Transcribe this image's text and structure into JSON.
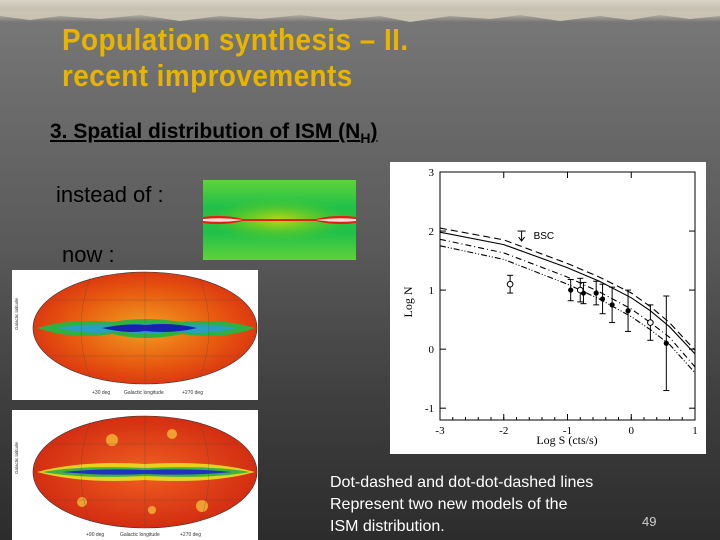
{
  "slide": {
    "title_line1": "Population synthesis – II.",
    "title_line2": "recent improvements",
    "subtitle_main": "3. Spatial distribution of ISM (N",
    "subtitle_sub": "H",
    "subtitle_end": ") ",
    "instead_label": "instead of :",
    "now_label": "now :",
    "note_line1": "Dot-dashed and dot-dot-dashed lines",
    "note_line2": "Represent two new models of the",
    "note_line3": "ISM distribution.",
    "page_number": "49"
  },
  "maps": {
    "top_left_label": "+30 deg",
    "top_mid_label": "Galactic longitude",
    "top_right_label": "+270 deg",
    "top_axis_label": "Galactic latitude",
    "bottom_left_label": "+90 deg",
    "bottom_mid_label": "Galactic longitude",
    "bottom_right_label": "+270 deg",
    "bottom_axis_label": "Galactic latitude"
  },
  "chart_data": {
    "type": "line",
    "xlabel": "Log S (cts/s)",
    "ylabel": "Log N",
    "xlim": [
      -3,
      1
    ],
    "ylim": [
      -1.2,
      3
    ],
    "xticks": [
      "-3",
      "-2",
      "-1",
      "0",
      "1"
    ],
    "yticks": [
      "3",
      "2",
      "1",
      "0",
      "-1"
    ],
    "annotation": "BSC",
    "series": [
      {
        "style": "dashed",
        "x": [
          -3,
          -2,
          -1,
          -0.5,
          0,
          0.3,
          0.6,
          1
        ],
        "y": [
          2.05,
          1.85,
          1.45,
          1.22,
          0.95,
          0.72,
          0.45,
          -0.02
        ]
      },
      {
        "style": "solid",
        "x": [
          -3,
          -2,
          -1,
          -0.5,
          0,
          0.3,
          0.6,
          1
        ],
        "y": [
          1.98,
          1.77,
          1.38,
          1.15,
          0.87,
          0.65,
          0.38,
          -0.08
        ]
      },
      {
        "style": "dotdash",
        "x": [
          -3,
          -2,
          -1,
          -0.5,
          0,
          0.3,
          0.6,
          1
        ],
        "y": [
          1.86,
          1.63,
          1.22,
          0.97,
          0.68,
          0.45,
          0.2,
          -0.3
        ]
      },
      {
        "style": "dotdotdash",
        "x": [
          -3,
          -2,
          -1,
          -0.5,
          0,
          0.3,
          0.6,
          1
        ],
        "y": [
          1.75,
          1.52,
          1.1,
          0.85,
          0.55,
          0.33,
          0.08,
          -0.4
        ]
      }
    ],
    "points_filled": [
      {
        "x": -0.95,
        "y": 1.0,
        "err": 0.18
      },
      {
        "x": -0.75,
        "y": 0.95,
        "err": 0.18
      },
      {
        "x": -0.55,
        "y": 0.95,
        "err": 0.2
      },
      {
        "x": -0.45,
        "y": 0.85,
        "err": 0.25
      },
      {
        "x": -0.3,
        "y": 0.75,
        "err": 0.3
      },
      {
        "x": -0.05,
        "y": 0.65,
        "err": 0.35
      },
      {
        "x": 0.55,
        "y": 0.1,
        "err": 0.8
      }
    ],
    "points_open": [
      {
        "x": -1.9,
        "y": 1.1,
        "err": 0.15
      },
      {
        "x": -0.8,
        "y": 1.0,
        "err": 0.2
      },
      {
        "x": 0.3,
        "y": 0.45,
        "err": 0.3
      }
    ],
    "upper_limit": {
      "x": -1.72,
      "y": 2.0
    }
  },
  "colors": {
    "title": "#e8b400",
    "map_green": "#22c23a",
    "map_red": "#e03010",
    "map_blue": "#2030d0"
  }
}
